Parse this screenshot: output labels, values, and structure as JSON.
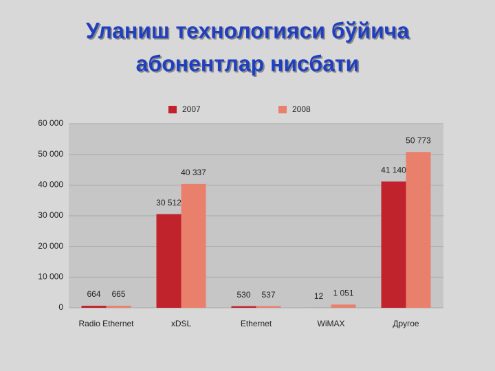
{
  "chart_data": {
    "type": "bar",
    "title": [
      "Уланиш технологияси бўйича",
      "абонентлар нисбати"
    ],
    "categories": [
      "Radio Ethernet",
      "xDSL",
      "Ethernet",
      "WiMAX",
      "Другое"
    ],
    "series": [
      {
        "name": "2007",
        "color": "#c0232b",
        "values": [
          664,
          30512,
          530,
          12,
          41140
        ],
        "value_labels": [
          "664",
          "30 512",
          "530",
          "12",
          "41 140"
        ]
      },
      {
        "name": "2008",
        "color": "#e8806c",
        "values": [
          665,
          40337,
          537,
          1051,
          50773
        ],
        "value_labels": [
          "665",
          "40 337",
          "537",
          "1 051",
          "50 773"
        ]
      }
    ],
    "ylim": [
      0,
      60000
    ],
    "yticks": [
      0,
      {
        "value": 10000,
        "label": "10 000"
      },
      {
        "value": 20000,
        "label": "20 000"
      },
      {
        "value": 30000,
        "label": "30 000"
      },
      {
        "value": 40000,
        "label": "40 000"
      },
      {
        "value": 50000,
        "label": "50 000"
      },
      {
        "value": 60000,
        "label": "60 000"
      }
    ],
    "grid": true,
    "legend": "top"
  }
}
